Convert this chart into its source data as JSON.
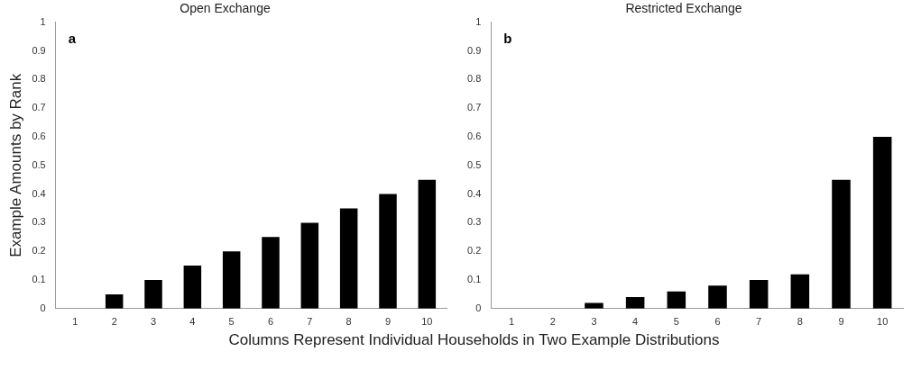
{
  "chart_data": [
    {
      "type": "bar",
      "title": "Open Exchange",
      "ylabel": "Example Amounts by Rank",
      "xlabel": "Columns Represent Individual Households in Two Example Distributions",
      "categories": [
        "1",
        "2",
        "3",
        "4",
        "5",
        "6",
        "7",
        "8",
        "9",
        "10"
      ],
      "values": [
        0,
        0.05,
        0.1,
        0.15,
        0.2,
        0.25,
        0.3,
        0.35,
        0.4,
        0.45
      ],
      "color": "#000000",
      "ylim": [
        0,
        1
      ],
      "yticks": [
        0,
        0.1,
        0.2,
        0.3,
        0.4,
        0.5,
        0.6,
        0.7,
        0.8,
        0.9,
        1
      ],
      "annotations": [
        "a"
      ],
      "legend": false,
      "grid": false
    },
    {
      "type": "bar",
      "title": "Restricted Exchange",
      "categories": [
        "1",
        "2",
        "3",
        "4",
        "5",
        "6",
        "7",
        "8",
        "9",
        "10"
      ],
      "values": [
        0,
        0,
        0.02,
        0.04,
        0.06,
        0.08,
        0.1,
        0.12,
        0.45,
        0.6
      ],
      "color": "#000000",
      "ylim": [
        0,
        1
      ],
      "yticks": [
        0,
        0.1,
        0.2,
        0.3,
        0.4,
        0.5,
        0.6,
        0.7,
        0.8,
        0.9,
        1
      ],
      "annotations": [
        "b"
      ],
      "legend": false,
      "grid": false
    }
  ]
}
